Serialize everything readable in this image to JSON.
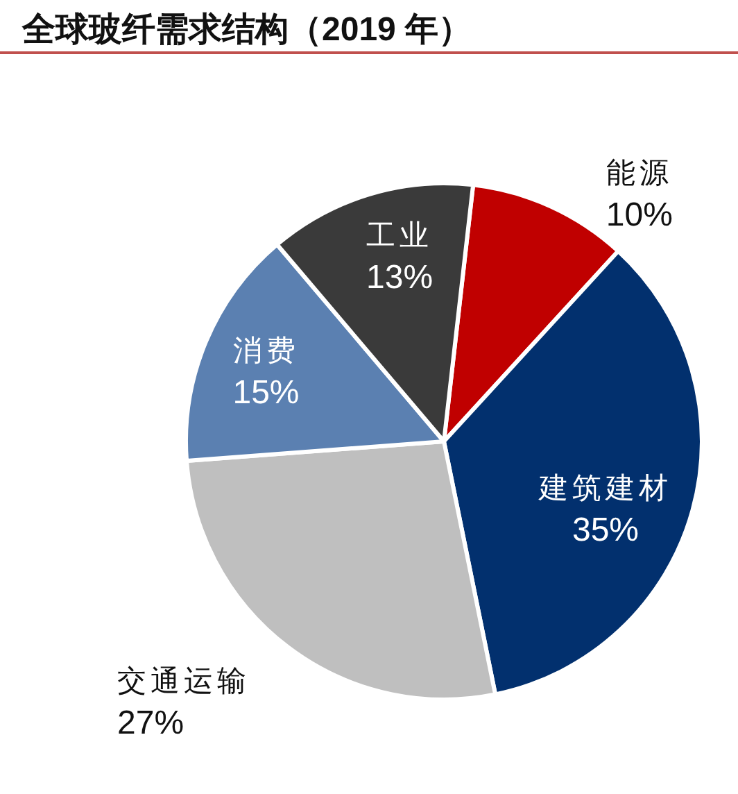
{
  "chart_data": {
    "type": "pie",
    "title": "全球玻纤需求结构（2019 年）",
    "categories": [
      "能源",
      "建筑建材",
      "交通运输",
      "消费",
      "工业"
    ],
    "values": [
      10,
      35,
      27,
      15,
      13
    ],
    "value_labels": [
      "10%",
      "35%",
      "27%",
      "15%",
      "13%"
    ],
    "colors": [
      "#c00000",
      "#02306e",
      "#bfbfbf",
      "#5b80b1",
      "#3a3a3a"
    ]
  }
}
